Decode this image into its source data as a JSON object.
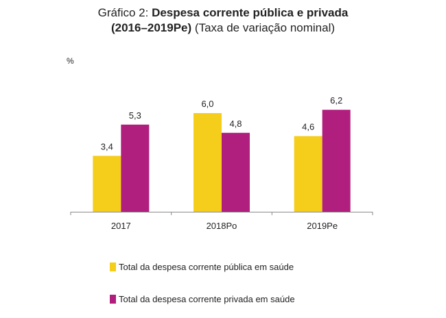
{
  "title": {
    "prefix": "Gráfico 2: ",
    "bold1": "Despesa corrente pública e privada",
    "bold2": "(2016–2019Pe)",
    "rest": " (Taxa de variação nominal)"
  },
  "chart_data": {
    "type": "bar",
    "categories": [
      "2017",
      "2018Po",
      "2019Pe"
    ],
    "series": [
      {
        "name": "Total da despesa corrente pública em saúde",
        "values": [
          3.4,
          6.0,
          4.6
        ],
        "labels": [
          "3,4",
          "6,0",
          "4,6"
        ],
        "color": "#F5CD1B"
      },
      {
        "name": "Total da despesa corrente privada em saúde",
        "values": [
          5.3,
          4.8,
          6.2
        ],
        "labels": [
          "5,3",
          "4,8",
          "6,2"
        ],
        "color": "#B01F7E"
      }
    ],
    "ylabel": "%",
    "ylim": [
      0,
      7
    ],
    "grid": false,
    "legend": "bottom"
  }
}
